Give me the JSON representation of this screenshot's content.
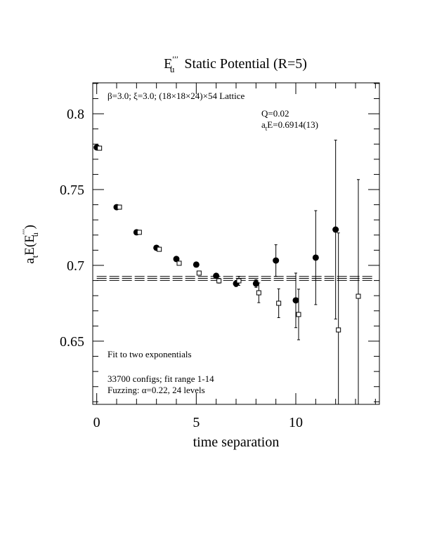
{
  "chart_data": {
    "type": "scatter",
    "title": {
      "base": "E",
      "sup": "′′′",
      "sub": "u",
      "rest": "Static Potential (R=5)"
    },
    "x_label": "time separation",
    "y_label": {
      "a": "a",
      "a_sub": "t",
      "mid": "E(E",
      "sup": "′′′",
      "sub": "u",
      "end": " )"
    },
    "annotations": {
      "lattice": "β=3.0; ξ=3.0; (18×18×24)×54 Lattice",
      "q": "Q=0.02",
      "energy": {
        "a": "a",
        "a_sub": "t",
        "rest": "E=0.6914(13)"
      },
      "fit": "Fit to two exponentials",
      "configs": "33700 configs; fit range 1-14",
      "fuzzing": "Fuzzing: α=0.22, 24 levels"
    },
    "x": [
      0,
      1,
      2,
      3,
      4,
      5,
      6,
      7,
      8,
      9,
      10,
      11,
      12,
      13,
      14
    ],
    "series": [
      {
        "marker": "filled-circle",
        "color": "#000000",
        "values": [
          0.7778,
          0.7384,
          0.7218,
          0.7116,
          0.7042,
          0.7005,
          0.6931,
          0.688,
          0.688,
          0.7032,
          0.6769,
          0.7051,
          0.7236,
          null,
          null
        ],
        "errors": [
          0.0008,
          0.0008,
          0.0008,
          0.0008,
          0.001,
          0.001,
          0.0012,
          0.002,
          0.0025,
          0.0104,
          0.018,
          0.031,
          0.059,
          null,
          null
        ]
      },
      {
        "marker": "open-square",
        "color": "#000000",
        "values": [
          0.7773,
          0.7384,
          0.7218,
          0.7106,
          0.7014,
          0.6949,
          0.6898,
          0.6898,
          0.6819,
          0.675,
          0.6676,
          null,
          0.6574,
          0.6796,
          null
        ],
        "errors": [
          0.0008,
          0.0008,
          0.0008,
          0.0008,
          0.001,
          0.0012,
          0.0015,
          0.003,
          0.0065,
          0.0095,
          0.0167,
          null,
          0.064,
          0.077,
          null
        ]
      }
    ],
    "fit": {
      "value": 0.6914,
      "error": 0.0013
    },
    "xlim": [
      -0.2,
      14.2
    ],
    "ylim": [
      0.6083,
      0.8204
    ],
    "xticks": [
      0,
      5,
      10
    ],
    "yticks": [
      0.65,
      0.7,
      0.75,
      0.8
    ],
    "xminor": [
      1,
      2,
      3,
      4,
      6,
      7,
      8,
      9,
      11,
      12,
      13,
      14
    ],
    "yminor": [
      0.61,
      0.62,
      0.63,
      0.64,
      0.66,
      0.67,
      0.68,
      0.69,
      0.71,
      0.72,
      0.73,
      0.74,
      0.76,
      0.77,
      0.78,
      0.79,
      0.81,
      0.82
    ]
  }
}
